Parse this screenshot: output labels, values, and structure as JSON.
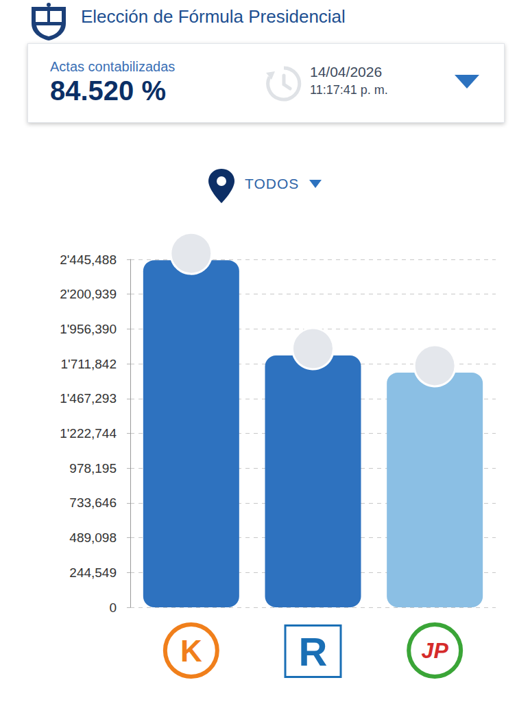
{
  "header": {
    "title": "Elección de Fórmula Presidencial"
  },
  "summary": {
    "label": "Actas contabilizadas",
    "value": "84.520 %",
    "date": "14/04/2026",
    "time": "11:17:41 p. m."
  },
  "filter": "TODOS",
  "chart_data": {
    "type": "bar",
    "categories": [
      "K",
      "R",
      "JP"
    ],
    "values": [
      2440000,
      1770000,
      1650000
    ],
    "colors": [
      "#2e72bf",
      "#2e72bf",
      "#8bbfe4"
    ],
    "ylim": [
      0,
      2445488
    ],
    "yticks": [
      0,
      {
        "value": 244549,
        "label": "244,549"
      },
      {
        "value": 489098,
        "label": "489,098"
      },
      {
        "value": 733646,
        "label": "733,646"
      },
      {
        "value": 978195,
        "label": "978,195"
      },
      {
        "value": 1222744,
        "label": "1'222,744"
      },
      {
        "value": 1467293,
        "label": "1'467,293"
      },
      {
        "value": 1711842,
        "label": "1'711,842"
      },
      {
        "value": 1956390,
        "label": "1'956,390"
      },
      {
        "value": 2200939,
        "label": "2'200,939"
      },
      {
        "value": 2445488,
        "label": "2'445,488"
      }
    ],
    "grid": true
  }
}
